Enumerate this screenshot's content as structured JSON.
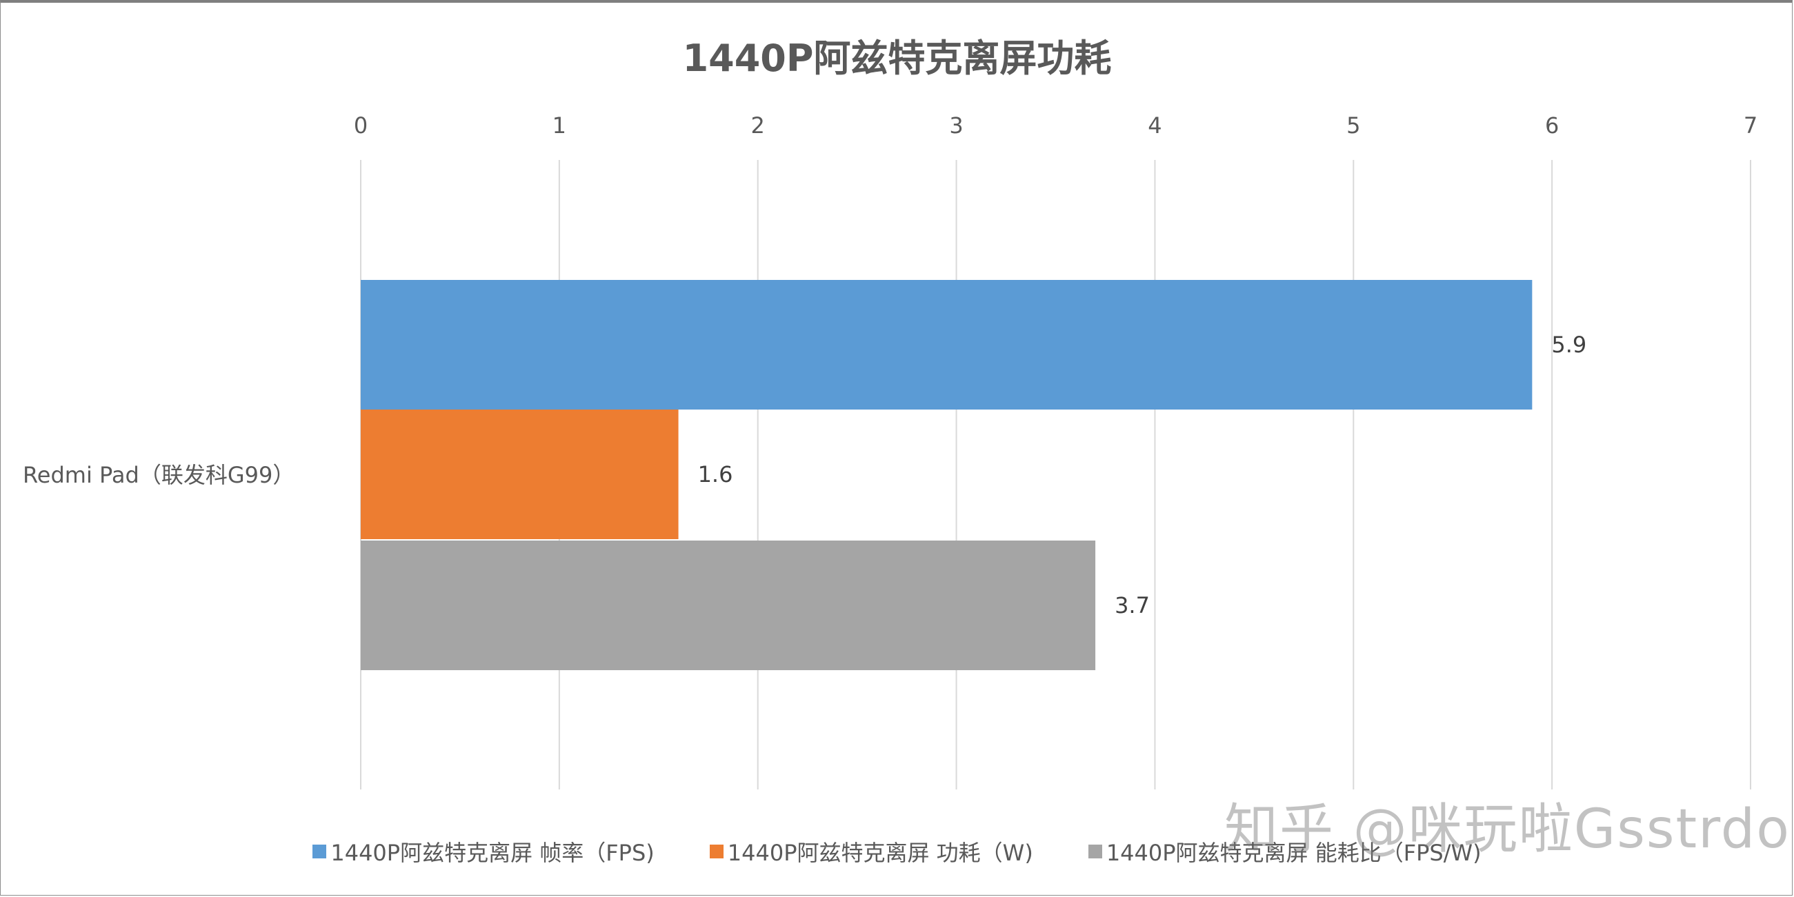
{
  "chart_data": {
    "type": "bar",
    "orientation": "horizontal",
    "title": "1440P阿兹特克离屏功耗",
    "categories": [
      "Redmi Pad（联发科G99）"
    ],
    "series": [
      {
        "name": "1440P阿兹特克离屏 帧率（FPS)",
        "values": [
          5.9
        ],
        "color": "#5b9bd5"
      },
      {
        "name": "1440P阿兹特克离屏 功耗（W)",
        "values": [
          1.6
        ],
        "color": "#ed7d31"
      },
      {
        "name": "1440P阿兹特克离屏 能耗比（FPS/W)",
        "values": [
          3.7
        ],
        "color": "#a5a5a5"
      }
    ],
    "data_labels": [
      "5.9",
      "1.6",
      "3.7"
    ],
    "xlim": [
      0,
      7
    ],
    "x_ticks": [
      "0",
      "1",
      "2",
      "3",
      "4",
      "5",
      "6",
      "7"
    ],
    "x_axis_position": "top",
    "grid": true,
    "legend_position": "bottom"
  },
  "watermark": "知乎 @咪玩啦Gsstrdo"
}
